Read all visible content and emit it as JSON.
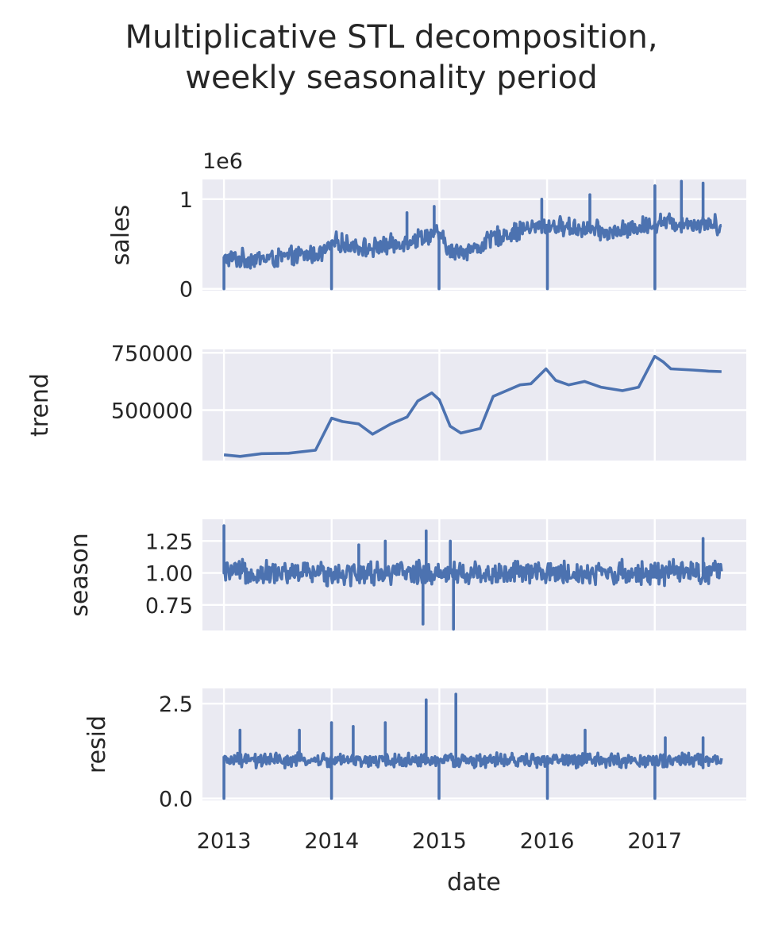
{
  "chart_data": {
    "type": "line",
    "title": [
      "Multiplicative STL decomposition,",
      "weekly seasonality period"
    ],
    "xlabel": "date",
    "x_ticks": [
      "2013",
      "2014",
      "2015",
      "2016",
      "2017"
    ],
    "x_range": [
      2012.8,
      2017.85
    ],
    "grid": true,
    "colors": {
      "series": "#4c72b0",
      "panel_background": "#eaeaf2",
      "grid": "#ffffff"
    },
    "panels": [
      {
        "ylabel": "sales",
        "offset_label": "1e6",
        "ylim": [
          -0.02,
          1.22
        ],
        "y_ticks": [
          {
            "value": 0,
            "label": "0"
          },
          {
            "value": 1,
            "label": "1"
          }
        ],
        "style": "noisy",
        "trend_points": [
          [
            2013.0,
            0.33
          ],
          [
            2013.5,
            0.34
          ],
          [
            2013.9,
            0.4
          ],
          [
            2014.05,
            0.52
          ],
          [
            2014.35,
            0.45
          ],
          [
            2014.6,
            0.5
          ],
          [
            2014.8,
            0.57
          ],
          [
            2014.99,
            0.62
          ],
          [
            2015.1,
            0.41
          ],
          [
            2015.35,
            0.45
          ],
          [
            2015.5,
            0.57
          ],
          [
            2015.8,
            0.67
          ],
          [
            2016.0,
            0.7
          ],
          [
            2016.3,
            0.68
          ],
          [
            2016.6,
            0.62
          ],
          [
            2016.9,
            0.7
          ],
          [
            2017.05,
            0.75
          ],
          [
            2017.3,
            0.73
          ],
          [
            2017.6,
            0.72
          ]
        ],
        "amplitude": 0.09,
        "spike_down_at": [
          2013.0,
          2014.0,
          2015.0,
          2016.0,
          2017.0
        ],
        "spike_down_value": 0.0,
        "spikes_up": [
          [
            2014.7,
            0.85
          ],
          [
            2014.95,
            0.92
          ],
          [
            2015.95,
            1.0
          ],
          [
            2016.4,
            1.05
          ],
          [
            2017.0,
            1.15
          ],
          [
            2017.25,
            1.2
          ],
          [
            2017.45,
            1.18
          ]
        ]
      },
      {
        "ylabel": "trend",
        "ylim": [
          280000,
          765000
        ],
        "y_ticks": [
          {
            "value": 500000,
            "label": "500000"
          },
          {
            "value": 750000,
            "label": "750000"
          }
        ],
        "style": "smooth",
        "points": [
          [
            2013.0,
            305000
          ],
          [
            2013.15,
            298000
          ],
          [
            2013.35,
            310000
          ],
          [
            2013.6,
            312000
          ],
          [
            2013.85,
            325000
          ],
          [
            2014.0,
            465000
          ],
          [
            2014.1,
            450000
          ],
          [
            2014.25,
            440000
          ],
          [
            2014.38,
            395000
          ],
          [
            2014.55,
            440000
          ],
          [
            2014.7,
            470000
          ],
          [
            2014.8,
            540000
          ],
          [
            2014.93,
            575000
          ],
          [
            2015.0,
            545000
          ],
          [
            2015.1,
            430000
          ],
          [
            2015.2,
            400000
          ],
          [
            2015.38,
            420000
          ],
          [
            2015.5,
            560000
          ],
          [
            2015.6,
            580000
          ],
          [
            2015.75,
            610000
          ],
          [
            2015.85,
            615000
          ],
          [
            2015.99,
            680000
          ],
          [
            2016.08,
            630000
          ],
          [
            2016.2,
            610000
          ],
          [
            2016.35,
            625000
          ],
          [
            2016.5,
            600000
          ],
          [
            2016.7,
            585000
          ],
          [
            2016.85,
            600000
          ],
          [
            2017.0,
            735000
          ],
          [
            2017.08,
            710000
          ],
          [
            2017.15,
            680000
          ],
          [
            2017.35,
            675000
          ],
          [
            2017.5,
            670000
          ],
          [
            2017.62,
            668000
          ]
        ]
      },
      {
        "ylabel": "season",
        "ylim": [
          0.55,
          1.42
        ],
        "y_ticks": [
          {
            "value": 0.75,
            "label": "0.75"
          },
          {
            "value": 1.0,
            "label": "1.00"
          },
          {
            "value": 1.25,
            "label": "1.25"
          }
        ],
        "style": "noisy",
        "trend_points": [
          [
            2013.0,
            1.0
          ],
          [
            2017.62,
            1.0
          ]
        ],
        "amplitude": 0.08,
        "spikes_up": [
          [
            2013.0,
            1.37
          ],
          [
            2014.25,
            1.22
          ],
          [
            2014.5,
            1.25
          ],
          [
            2014.88,
            1.33
          ],
          [
            2015.1,
            1.25
          ],
          [
            2017.45,
            1.27
          ]
        ],
        "spikes_down": [
          [
            2014.85,
            0.6
          ],
          [
            2015.13,
            0.56
          ]
        ]
      },
      {
        "ylabel": "resid",
        "ylim": [
          -0.05,
          2.9
        ],
        "y_ticks": [
          {
            "value": 0.0,
            "label": "0.0"
          },
          {
            "value": 2.5,
            "label": "2.5"
          }
        ],
        "style": "noisy",
        "trend_points": [
          [
            2013.0,
            1.0
          ],
          [
            2017.62,
            1.0
          ]
        ],
        "amplitude": 0.16,
        "spike_down_at": [
          2013.0,
          2014.0,
          2015.0,
          2016.0,
          2017.0
        ],
        "spike_down_value": 0.0,
        "spikes_up": [
          [
            2013.15,
            1.8
          ],
          [
            2013.7,
            1.8
          ],
          [
            2014.0,
            2.0
          ],
          [
            2014.2,
            1.9
          ],
          [
            2014.5,
            2.0
          ],
          [
            2014.88,
            2.6
          ],
          [
            2015.15,
            2.75
          ],
          [
            2016.35,
            1.8
          ],
          [
            2017.1,
            1.6
          ],
          [
            2017.45,
            1.6
          ]
        ]
      }
    ]
  }
}
